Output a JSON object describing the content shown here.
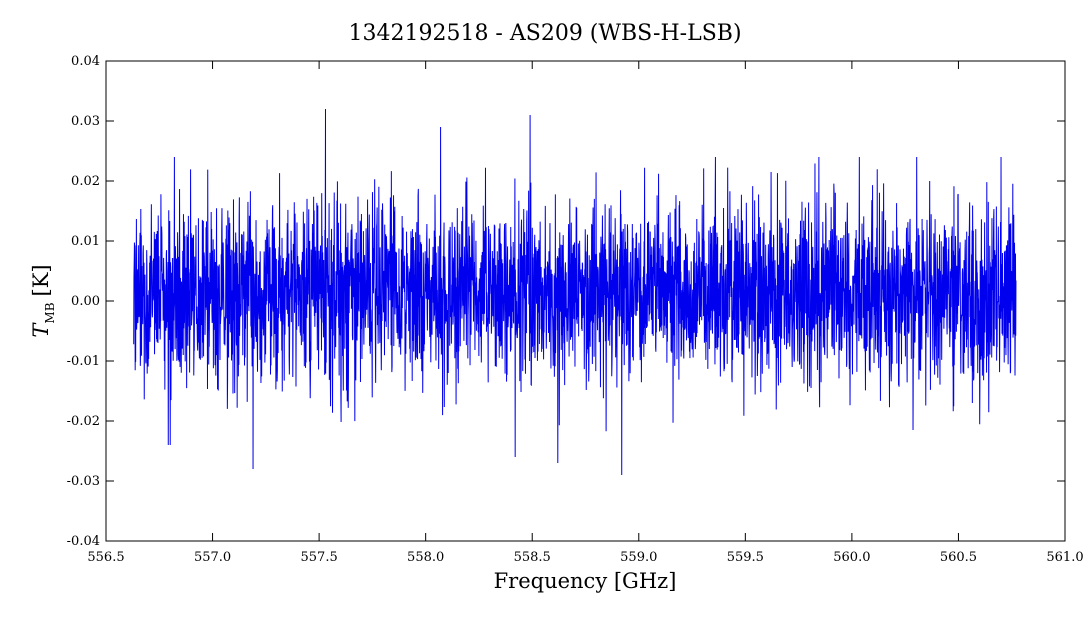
{
  "chart_data": {
    "type": "line",
    "title": "1342192518 - AS209 (WBS-H-LSB)",
    "xlabel": "Frequency [GHz]",
    "ylabel_main": "T",
    "ylabel_sub": "MB",
    "ylabel_unit": "[K]",
    "xlim": [
      556.5,
      561.0
    ],
    "ylim": [
      -0.04,
      0.04
    ],
    "x_ticks": [
      556.5,
      557.0,
      557.5,
      558.0,
      558.5,
      559.0,
      559.5,
      560.0,
      560.5,
      561.0
    ],
    "x_tick_labels": [
      "556.5",
      "557.0",
      "557.5",
      "558.0",
      "558.5",
      "559.0",
      "559.5",
      "560.0",
      "560.5",
      "561.0"
    ],
    "y_ticks": [
      -0.04,
      -0.03,
      -0.02,
      -0.01,
      0.0,
      0.01,
      0.02,
      0.03,
      0.04
    ],
    "y_tick_labels": [
      "-0.04",
      "-0.03",
      "-0.02",
      "-0.01",
      "0.00",
      "0.01",
      "0.02",
      "0.03",
      "0.04"
    ],
    "series": [
      {
        "color": "#0000ee",
        "x_start": 556.63,
        "x_end": 560.77,
        "mean": 0.0015,
        "noise_rms": 0.0075,
        "extremes": [
          {
            "x": 557.53,
            "y": 0.032
          },
          {
            "x": 558.49,
            "y": 0.031
          },
          {
            "x": 558.07,
            "y": 0.029
          },
          {
            "x": 557.19,
            "y": -0.028
          },
          {
            "x": 558.92,
            "y": -0.029
          },
          {
            "x": 558.62,
            "y": -0.027
          },
          {
            "x": 558.42,
            "y": -0.026
          }
        ]
      }
    ],
    "grid": false,
    "legend": "none"
  }
}
